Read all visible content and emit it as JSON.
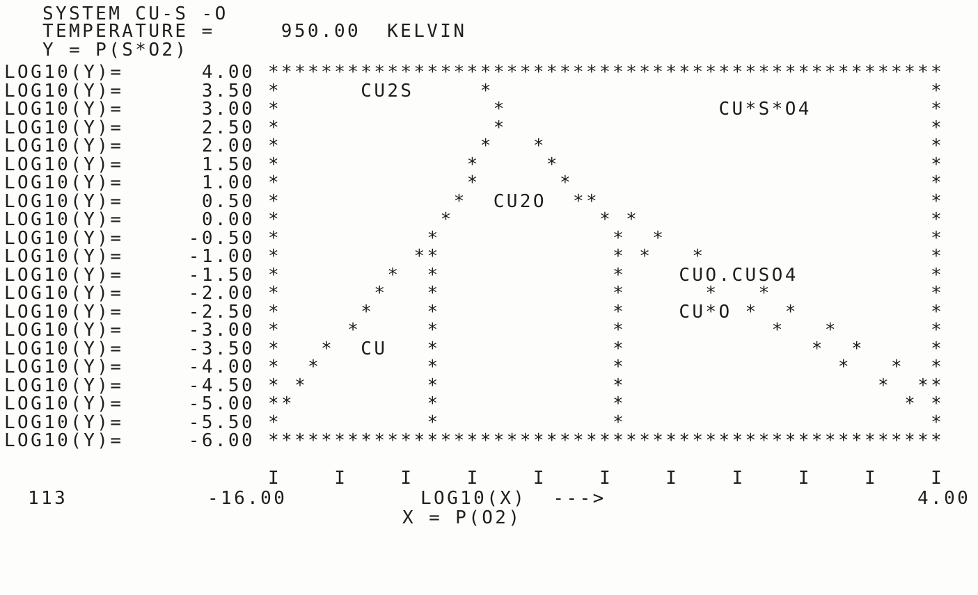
{
  "header": {
    "system": "SYSTEM CU-S -O",
    "temperature": "TEMPERATURE =     950.00  KELVIN",
    "y_definition": "Y = P(S*O2)"
  },
  "rows": [
    {
      "label": "LOG10(Y)=",
      "value": "4.00",
      "plot": "***************************************************"
    },
    {
      "label": "LOG10(Y)=",
      "value": "3.50",
      "plot": "*      CU2S     *                                 *"
    },
    {
      "label": "LOG10(Y)=",
      "value": "3.00",
      "plot": "*                *                CU*S*O4         *"
    },
    {
      "label": "LOG10(Y)=",
      "value": "2.50",
      "plot": "*                *                                *"
    },
    {
      "label": "LOG10(Y)=",
      "value": "2.00",
      "plot": "*               *   *                             *"
    },
    {
      "label": "LOG10(Y)=",
      "value": "1.50",
      "plot": "*              *     *                            *"
    },
    {
      "label": "LOG10(Y)=",
      "value": "1.00",
      "plot": "*              *      *                           *"
    },
    {
      "label": "LOG10(Y)=",
      "value": "0.50",
      "plot": "*             *  CU2O  **                         *"
    },
    {
      "label": "LOG10(Y)=",
      "value": "0.00",
      "plot": "*            *           * *                      *"
    },
    {
      "label": "LOG10(Y)=",
      "value": "-0.50",
      "plot": "*           *             *  *                    *"
    },
    {
      "label": "LOG10(Y)=",
      "value": "-1.00",
      "plot": "*          **             * *   *                 *"
    },
    {
      "label": "LOG10(Y)=",
      "value": "-1.50",
      "plot": "*        *  *             *    CUO.CUSO4          *"
    },
    {
      "label": "LOG10(Y)=",
      "value": "-2.00",
      "plot": "*       *   *             *      *   *            *"
    },
    {
      "label": "LOG10(Y)=",
      "value": "-2.50",
      "plot": "*      *    *             *    CU*O *  *          *"
    },
    {
      "label": "LOG10(Y)=",
      "value": "-3.00",
      "plot": "*     *     *             *           *   *       *"
    },
    {
      "label": "LOG10(Y)=",
      "value": "-3.50",
      "plot": "*   *  CU   *             *              *  *     *"
    },
    {
      "label": "LOG10(Y)=",
      "value": "-4.00",
      "plot": "*  *        *             *                *   *  *"
    },
    {
      "label": "LOG10(Y)=",
      "value": "-4.50",
      "plot": "* *         *             *                   *  **"
    },
    {
      "label": "LOG10(Y)=",
      "value": "-5.00",
      "plot": "**          *             *                     * *"
    },
    {
      "label": "LOG10(Y)=",
      "value": "-5.50",
      "plot": "*           *             *                       *"
    },
    {
      "label": "LOG10(Y)=",
      "value": "-6.00",
      "plot": "***************************************************"
    }
  ],
  "x_axis_marks": "I    I    I    I    I    I    I    I    I    I    I",
  "footer": {
    "page": "113",
    "x_min": "-16.00",
    "x_label": "LOG10(X)  --->",
    "x_max": "4.00",
    "x_definition": "X = P(O2)"
  }
}
